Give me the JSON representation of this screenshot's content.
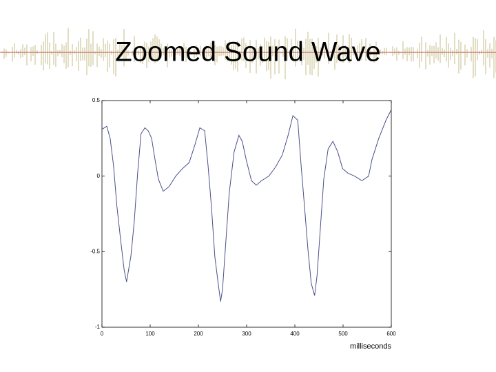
{
  "chart_data": {
    "type": "line",
    "title": "Zoomed Sound Wave",
    "x_label": "milliseconds",
    "x": [
      0,
      10,
      17,
      24,
      31,
      39,
      46,
      51,
      60,
      67,
      74,
      81,
      89,
      96,
      103,
      110,
      117,
      127,
      139,
      153,
      167,
      181,
      193,
      203,
      213,
      220,
      227,
      234,
      241,
      246,
      250,
      257,
      264,
      274,
      284,
      291,
      299,
      310,
      320,
      331,
      346,
      360,
      374,
      386,
      396,
      406,
      413,
      420,
      427,
      434,
      441,
      446,
      453,
      460,
      469,
      479,
      489,
      499,
      510,
      524,
      539,
      553,
      560,
      574,
      589,
      600
    ],
    "series": [
      {
        "color": "#4a4f8a",
        "values": [
          0.31,
          0.33,
          0.25,
          0.07,
          -0.2,
          -0.43,
          -0.62,
          -0.7,
          -0.53,
          -0.3,
          0.02,
          0.28,
          0.32,
          0.3,
          0.25,
          0.11,
          -0.02,
          -0.1,
          -0.07,
          0,
          0.05,
          0.09,
          0.21,
          0.32,
          0.3,
          0.07,
          -0.2,
          -0.53,
          -0.71,
          -0.83,
          -0.75,
          -0.43,
          -0.11,
          0.16,
          0.27,
          0.23,
          0.11,
          -0.03,
          -0.06,
          -0.03,
          0,
          0.06,
          0.14,
          0.27,
          0.4,
          0.37,
          0.07,
          -0.2,
          -0.48,
          -0.71,
          -0.79,
          -0.66,
          -0.34,
          -0.02,
          0.18,
          0.23,
          0.16,
          0.05,
          0.02,
          0,
          -0.03,
          0,
          0.11,
          0.25,
          0.37,
          0.44
        ]
      }
    ],
    "xlim": [
      0,
      600
    ],
    "xticks": [
      0,
      100,
      200,
      300,
      400,
      500,
      600
    ],
    "ylim": [
      -1,
      0.5
    ],
    "yticks": [
      -1,
      -0.5,
      0,
      0.5
    ]
  }
}
